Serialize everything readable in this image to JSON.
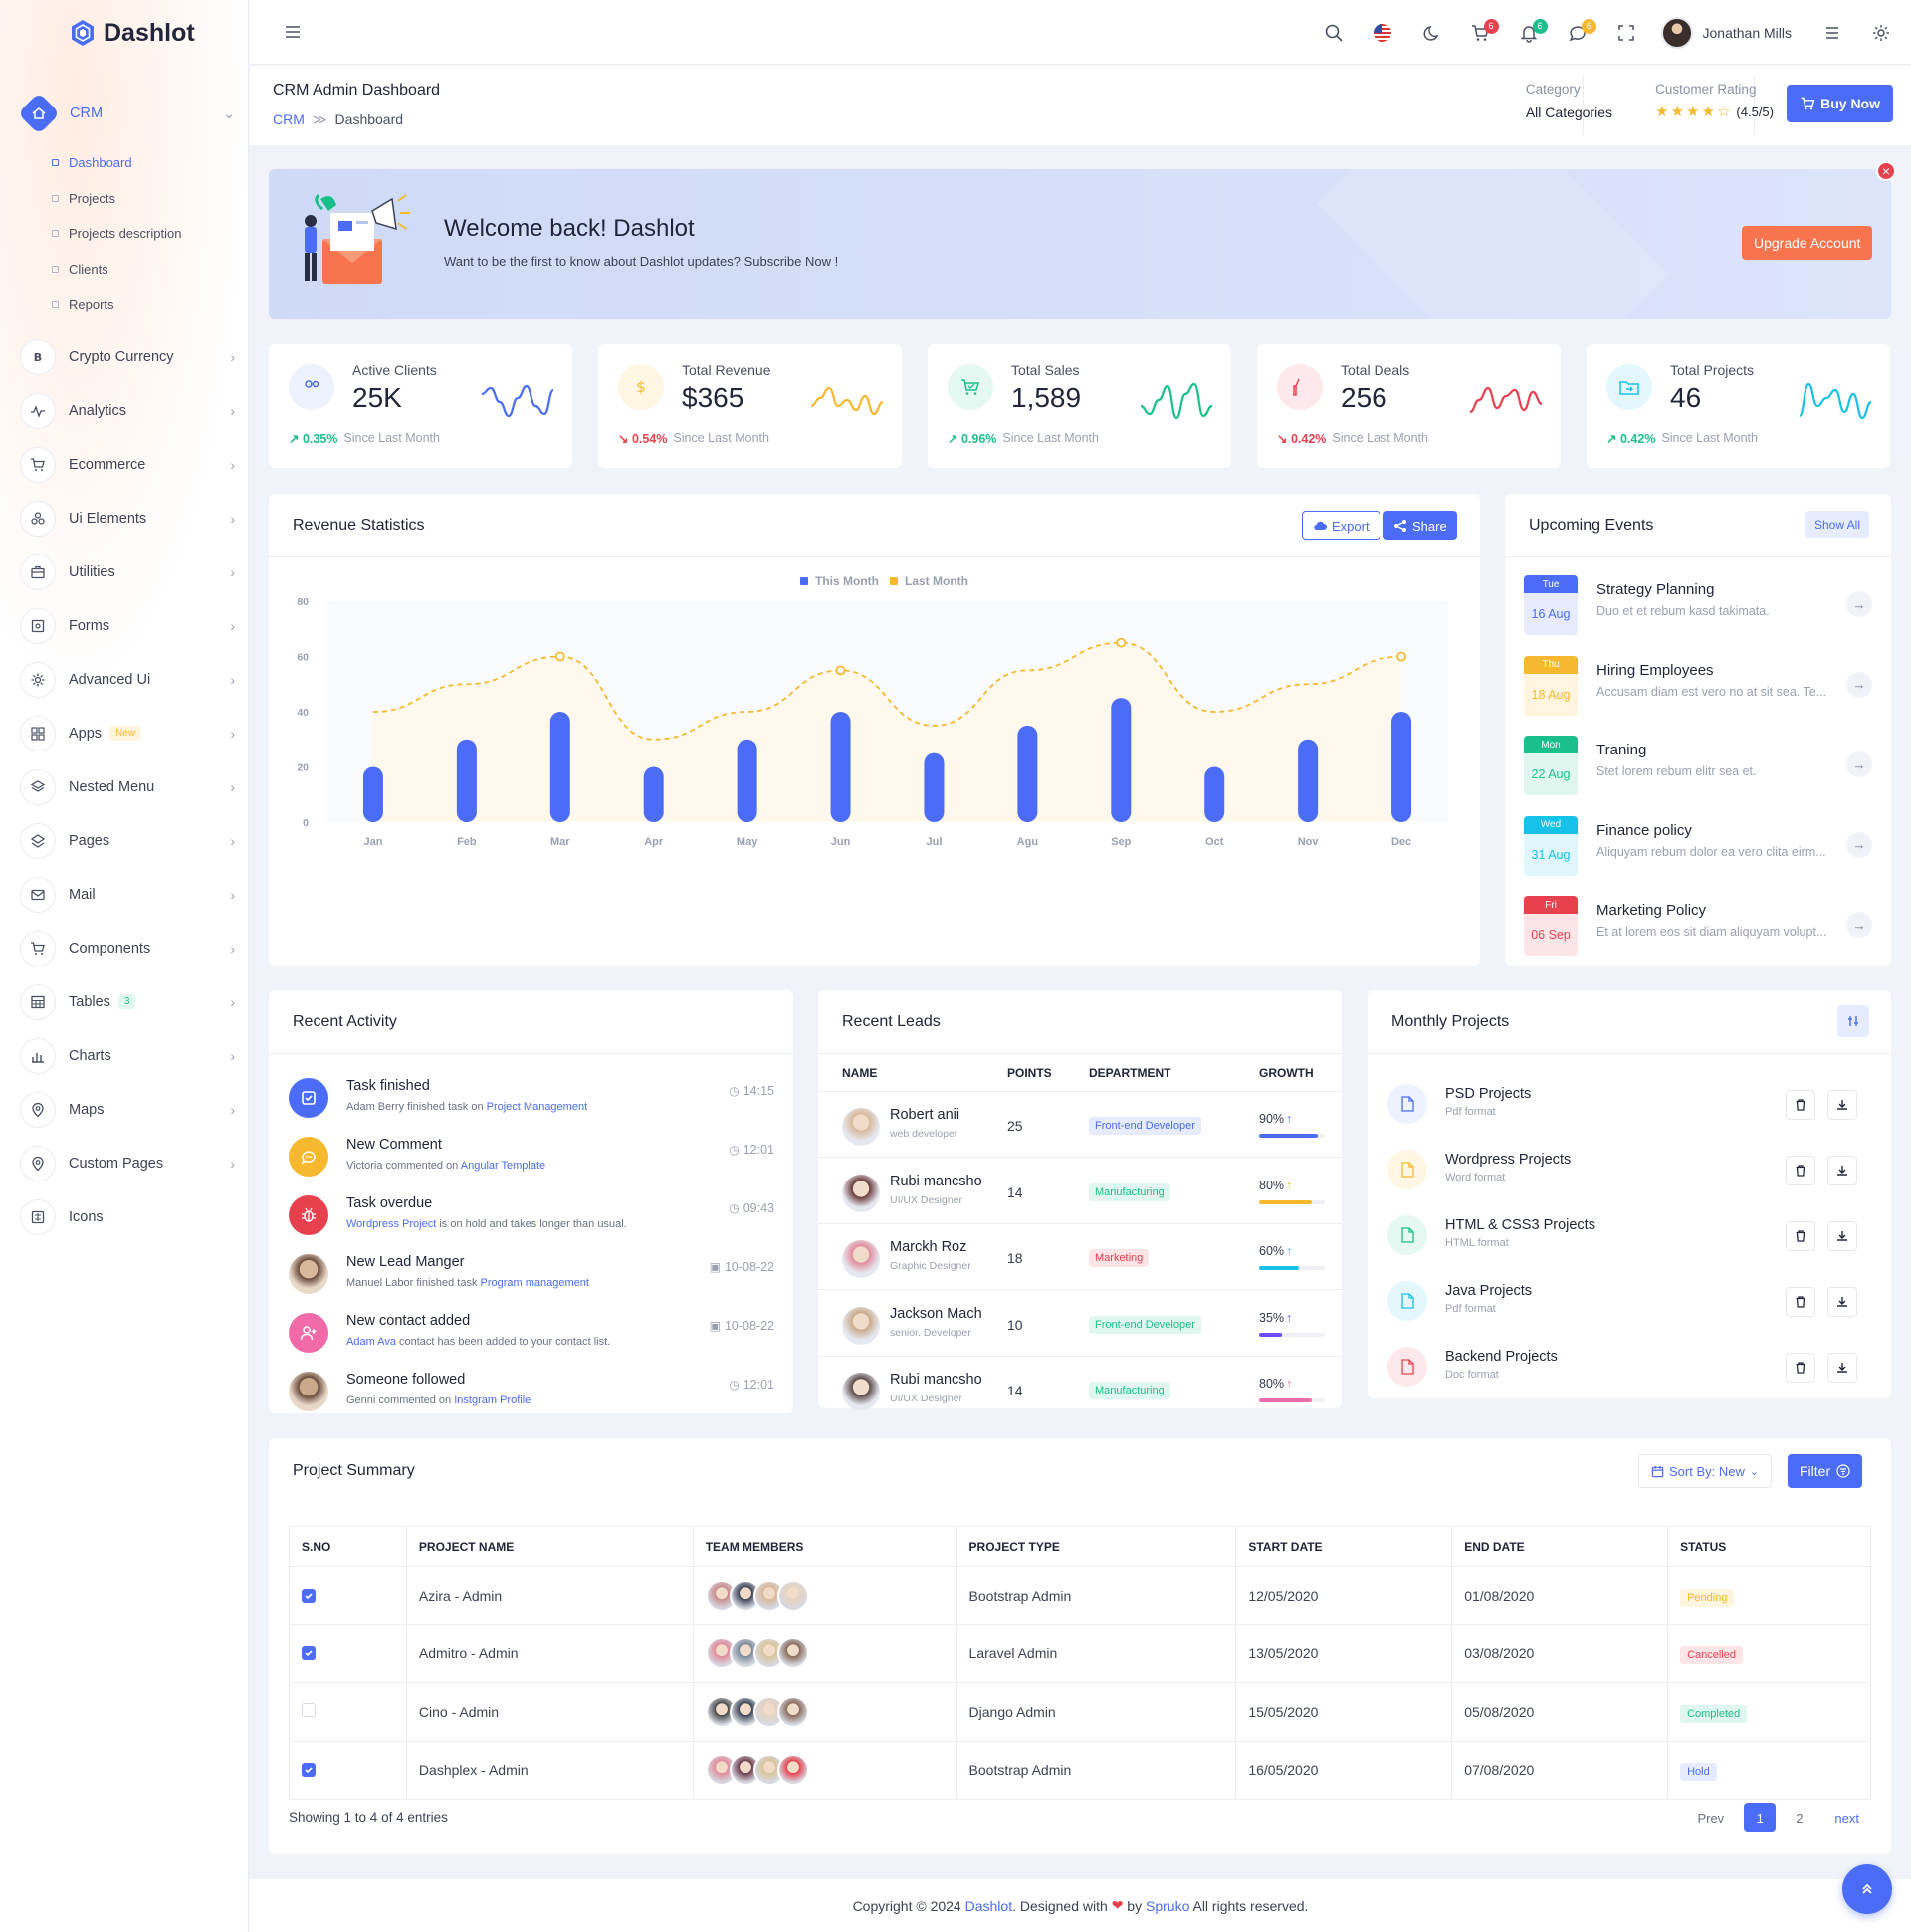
{
  "brand": "Dashlot",
  "sidebar": {
    "crm": "CRM",
    "sub": [
      "Dashboard",
      "Projects",
      "Projects description",
      "Clients",
      "Reports"
    ],
    "items": [
      {
        "label": "Crypto Currency",
        "icon": "bitcoin-icon"
      },
      {
        "label": "Analytics",
        "icon": "pulse-icon"
      },
      {
        "label": "Ecommerce",
        "icon": "cart-icon"
      },
      {
        "label": "Ui Elements",
        "icon": "grid-icon"
      },
      {
        "label": "Utilities",
        "icon": "briefcase-icon"
      },
      {
        "label": "Forms",
        "icon": "form-icon"
      },
      {
        "label": "Advanced Ui",
        "icon": "gear-icon"
      },
      {
        "label": "Apps",
        "icon": "apps-icon",
        "badge": "New"
      },
      {
        "label": "Nested Menu",
        "icon": "layers-icon"
      },
      {
        "label": "Pages",
        "icon": "stack-icon"
      },
      {
        "label": "Mail",
        "icon": "mail-icon"
      },
      {
        "label": "Components",
        "icon": "cart-icon"
      },
      {
        "label": "Tables",
        "icon": "table-icon",
        "badge": "3"
      },
      {
        "label": "Charts",
        "icon": "chart-icon"
      },
      {
        "label": "Maps",
        "icon": "pin-icon"
      },
      {
        "label": "Custom Pages",
        "icon": "pin-icon"
      },
      {
        "label": "Icons",
        "icon": "icons-icon"
      }
    ]
  },
  "header": {
    "user": "Jonathan Mills",
    "badges": {
      "cart": "6",
      "bell": "6",
      "chat": "6"
    }
  },
  "page": {
    "title": "CRM Admin Dashboard",
    "crumb": [
      "CRM",
      "Dashboard"
    ],
    "category_label": "Category",
    "category_value": "All Categories",
    "rating_label": "Customer Rating",
    "rating_value": "(4.5/5)",
    "rating": 4.5,
    "buy": "Buy Now"
  },
  "welcome": {
    "title": "Welcome back! Dashlot",
    "subtitle": "Want to be the first to know about Dashlot updates? Subscribe Now !",
    "button": "Upgrade Account"
  },
  "stats": [
    {
      "label": "Active Clients",
      "value": "25K",
      "trend": "0.35%",
      "dir": "up",
      "since": "Since Last Month",
      "color": "#4a6cf7"
    },
    {
      "label": "Total Revenue",
      "value": "$365",
      "trend": "0.54%",
      "dir": "down",
      "since": "Since Last Month",
      "color": "#f5b82e"
    },
    {
      "label": "Total Sales",
      "value": "1,589",
      "trend": "0.96%",
      "dir": "up",
      "since": "Since Last Month",
      "color": "#1bbf8a"
    },
    {
      "label": "Total Deals",
      "value": "256",
      "trend": "0.42%",
      "dir": "down",
      "since": "Since Last Month",
      "color": "#e8414e"
    },
    {
      "label": "Total Projects",
      "value": "46",
      "trend": "0.42%",
      "dir": "up",
      "since": "Since Last Month",
      "color": "#17c1e8"
    }
  ],
  "revenue": {
    "title": "Revenue Statistics",
    "export": "Export",
    "share": "Share"
  },
  "chart_data": {
    "type": "bar",
    "categories": [
      "Jan",
      "Feb",
      "Mar",
      "Apr",
      "May",
      "Jun",
      "Jul",
      "Agu",
      "Sep",
      "Oct",
      "Nov",
      "Dec"
    ],
    "series": [
      {
        "name": "This Month",
        "type": "bar",
        "color": "#4a6cf7",
        "values": [
          20,
          30,
          40,
          20,
          30,
          40,
          25,
          35,
          45,
          20,
          30,
          40
        ]
      },
      {
        "name": "Last Month",
        "type": "line",
        "color": "#f5b82e",
        "values": [
          40,
          50,
          60,
          30,
          40,
          55,
          35,
          55,
          65,
          40,
          50,
          60
        ]
      }
    ],
    "yticks": [
      0,
      20,
      40,
      60,
      80
    ],
    "ylim": [
      0,
      80
    ],
    "legend": "top-center"
  },
  "events": {
    "title": "Upcoming Events",
    "show_all": "Show All",
    "items": [
      {
        "day": "Tue",
        "date": "16 Aug",
        "title": "Strategy Planning",
        "desc": "Duo et et rebum kasd takimata.",
        "color": "#4a6cf7",
        "bg": "#e6ecfe"
      },
      {
        "day": "Thu",
        "date": "18 Aug",
        "title": "Hiring Employees",
        "desc": "Accusam diam est vero no at sit sea. Te...",
        "color": "#f5b82e",
        "bg": "#fff4dd"
      },
      {
        "day": "Mon",
        "date": "22 Aug",
        "title": "Traning",
        "desc": "Stet lorem rebum elitr sea et.",
        "color": "#1bbf8a",
        "bg": "#dff7ef"
      },
      {
        "day": "Wed",
        "date": "31 Aug",
        "title": "Finance policy",
        "desc": "Aliquyam rebum dolor ea vero clita eirm...",
        "color": "#17c1e8",
        "bg": "#def6fc"
      },
      {
        "day": "Fri",
        "date": "06 Sep",
        "title": "Marketing Policy",
        "desc": "Et at lorem eos sit diam aliquyam volupt...",
        "color": "#e8414e",
        "bg": "#fde5e7"
      }
    ]
  },
  "activity": {
    "title": "Recent Activity",
    "items": [
      {
        "title": "Task finished",
        "pre": "Adam Berry finished task on ",
        "link": "Project Management",
        "post": "",
        "time": "14:15",
        "color": "#4a6cf7",
        "icon": "task-icon"
      },
      {
        "title": "New Comment",
        "pre": "Victoria commented on ",
        "link": "Angular Template",
        "post": "",
        "time": "12:01",
        "color": "#f5b82e",
        "icon": "comment-icon"
      },
      {
        "title": "Task overdue",
        "pre": "",
        "link": "Wordpress Project",
        "post": " is on hold and takes longer than usual.",
        "time": "09:43",
        "color": "#e8414e",
        "icon": "bug-icon"
      },
      {
        "title": "New Lead Manger",
        "pre": "Manuel Labor finished task ",
        "link": "Program management",
        "post": "",
        "time": "10-08-22",
        "color": "#d8b89a",
        "icon": "avatar"
      },
      {
        "title": "New contact added",
        "pre": "",
        "link": "Adam Ava",
        "post": " contact has been added to your contact list.",
        "time": "10-08-22",
        "color": "#f06ba8",
        "icon": "user-add-icon"
      },
      {
        "title": "Someone followed",
        "pre": "Genni commented on ",
        "link": "Instgram Profile",
        "post": "",
        "time": "12:01",
        "color": "#c9a98a",
        "icon": "avatar"
      }
    ]
  },
  "leads": {
    "title": "Recent Leads",
    "headers": [
      "NAME",
      "POINTS",
      "DEPARTMENT",
      "GROWTH"
    ],
    "rows": [
      {
        "name": "Robert anii",
        "role": "web developer",
        "points": "25",
        "dept": "Front-end Developer",
        "growth": "90%",
        "pct": 90,
        "color": "#4a6cf7",
        "dbg": "#e6ecfe",
        "dfg": "#4a6cf7"
      },
      {
        "name": "Rubi mancsho",
        "role": "UI/UX Designer",
        "points": "14",
        "dept": "Manufacturing",
        "growth": "80%",
        "pct": 80,
        "color": "#f5b82e",
        "dbg": "#dff7ef",
        "dfg": "#1bbf8a"
      },
      {
        "name": "Marckh Roz",
        "role": "Graphic Designer",
        "points": "18",
        "dept": "Marketing",
        "growth": "60%",
        "pct": 60,
        "color": "#17c1e8",
        "dbg": "#fde5e7",
        "dfg": "#e8414e"
      },
      {
        "name": "Jackson Mach",
        "role": "senior. Developer",
        "points": "10",
        "dept": "Front-end Developer",
        "growth": "35%",
        "pct": 35,
        "color": "#6c4df5",
        "dbg": "#dff7ef",
        "dfg": "#1bbf8a"
      },
      {
        "name": "Rubi mancsho",
        "role": "UI/UX Designer",
        "points": "14",
        "dept": "Manufacturing",
        "growth": "80%",
        "pct": 80,
        "color": "#f06ba8",
        "dbg": "#dff7ef",
        "dfg": "#1bbf8a"
      }
    ]
  },
  "monthly": {
    "title": "Monthly Projects",
    "items": [
      {
        "title": "PSD Projects",
        "sub": "Pdf format",
        "color": "#4a6cf7",
        "bg": "#eef1fe"
      },
      {
        "title": "Wordpress Projects",
        "sub": "Word format",
        "color": "#f5b82e",
        "bg": "#fff6e3"
      },
      {
        "title": "HTML & CSS3 Projects",
        "sub": "HTML format",
        "color": "#1bbf8a",
        "bg": "#e5f8f1"
      },
      {
        "title": "Java Projects",
        "sub": "Pdf format",
        "color": "#17c1e8",
        "bg": "#e4f7fc"
      },
      {
        "title": "Backend Projects",
        "sub": "Doc format",
        "color": "#e8414e",
        "bg": "#fde9eb"
      }
    ]
  },
  "project": {
    "title": "Project Summary",
    "sort": "Sort By: New",
    "filter": "Filter",
    "headers": [
      "S.NO",
      "PROJECT NAME",
      "TEAM MEMBERS",
      "PROJECT TYPE",
      "START DATE",
      "END DATE",
      "STATUS"
    ],
    "rows": [
      {
        "checked": true,
        "name": "Azira - Admin",
        "type": "Bootstrap Admin",
        "start": "12/05/2020",
        "end": "01/08/2020",
        "status": "Pending",
        "sbg": "#fff4dd",
        "sfg": "#f5b82e",
        "team": [
          "#c98a8a",
          "#3d4355",
          "#d9b89a",
          "#e7d3c0"
        ]
      },
      {
        "checked": true,
        "name": "Admitro - Admin",
        "type": "Laravel Admin",
        "start": "13/05/2020",
        "end": "03/08/2020",
        "status": "Cancelled",
        "sbg": "#fde5e7",
        "sfg": "#e8414e",
        "team": [
          "#e28a9a",
          "#7a8a9a",
          "#d9c49a",
          "#8a6a5a"
        ]
      },
      {
        "checked": false,
        "name": "Cino - Admin",
        "type": "Django Admin",
        "start": "15/05/2020",
        "end": "05/08/2020",
        "status": "Completed",
        "sbg": "#dff7ef",
        "sfg": "#1bbf8a",
        "team": [
          "#4a4a4a",
          "#3d4355",
          "#e7d3c0",
          "#8a6a5a"
        ]
      },
      {
        "checked": true,
        "name": "Dashplex - Admin",
        "type": "Bootstrap Admin",
        "start": "16/05/2020",
        "end": "07/08/2020",
        "status": "Hold",
        "sbg": "#e6ecfe",
        "sfg": "#4a6cf7",
        "team": [
          "#e28a9a",
          "#6a3a4a",
          "#d9c49a",
          "#e8414e"
        ]
      }
    ],
    "showing": "Showing 1 to 4 of 4 entries",
    "pages": {
      "prev": "Prev",
      "p1": "1",
      "p2": "2",
      "next": "next"
    }
  },
  "footer": {
    "pre": "Copyright © 2024 ",
    "brand": "Dashlot",
    "mid": ". Designed with ",
    "by": " by ",
    "author": "Spruko",
    "post": " All rights reserved."
  }
}
